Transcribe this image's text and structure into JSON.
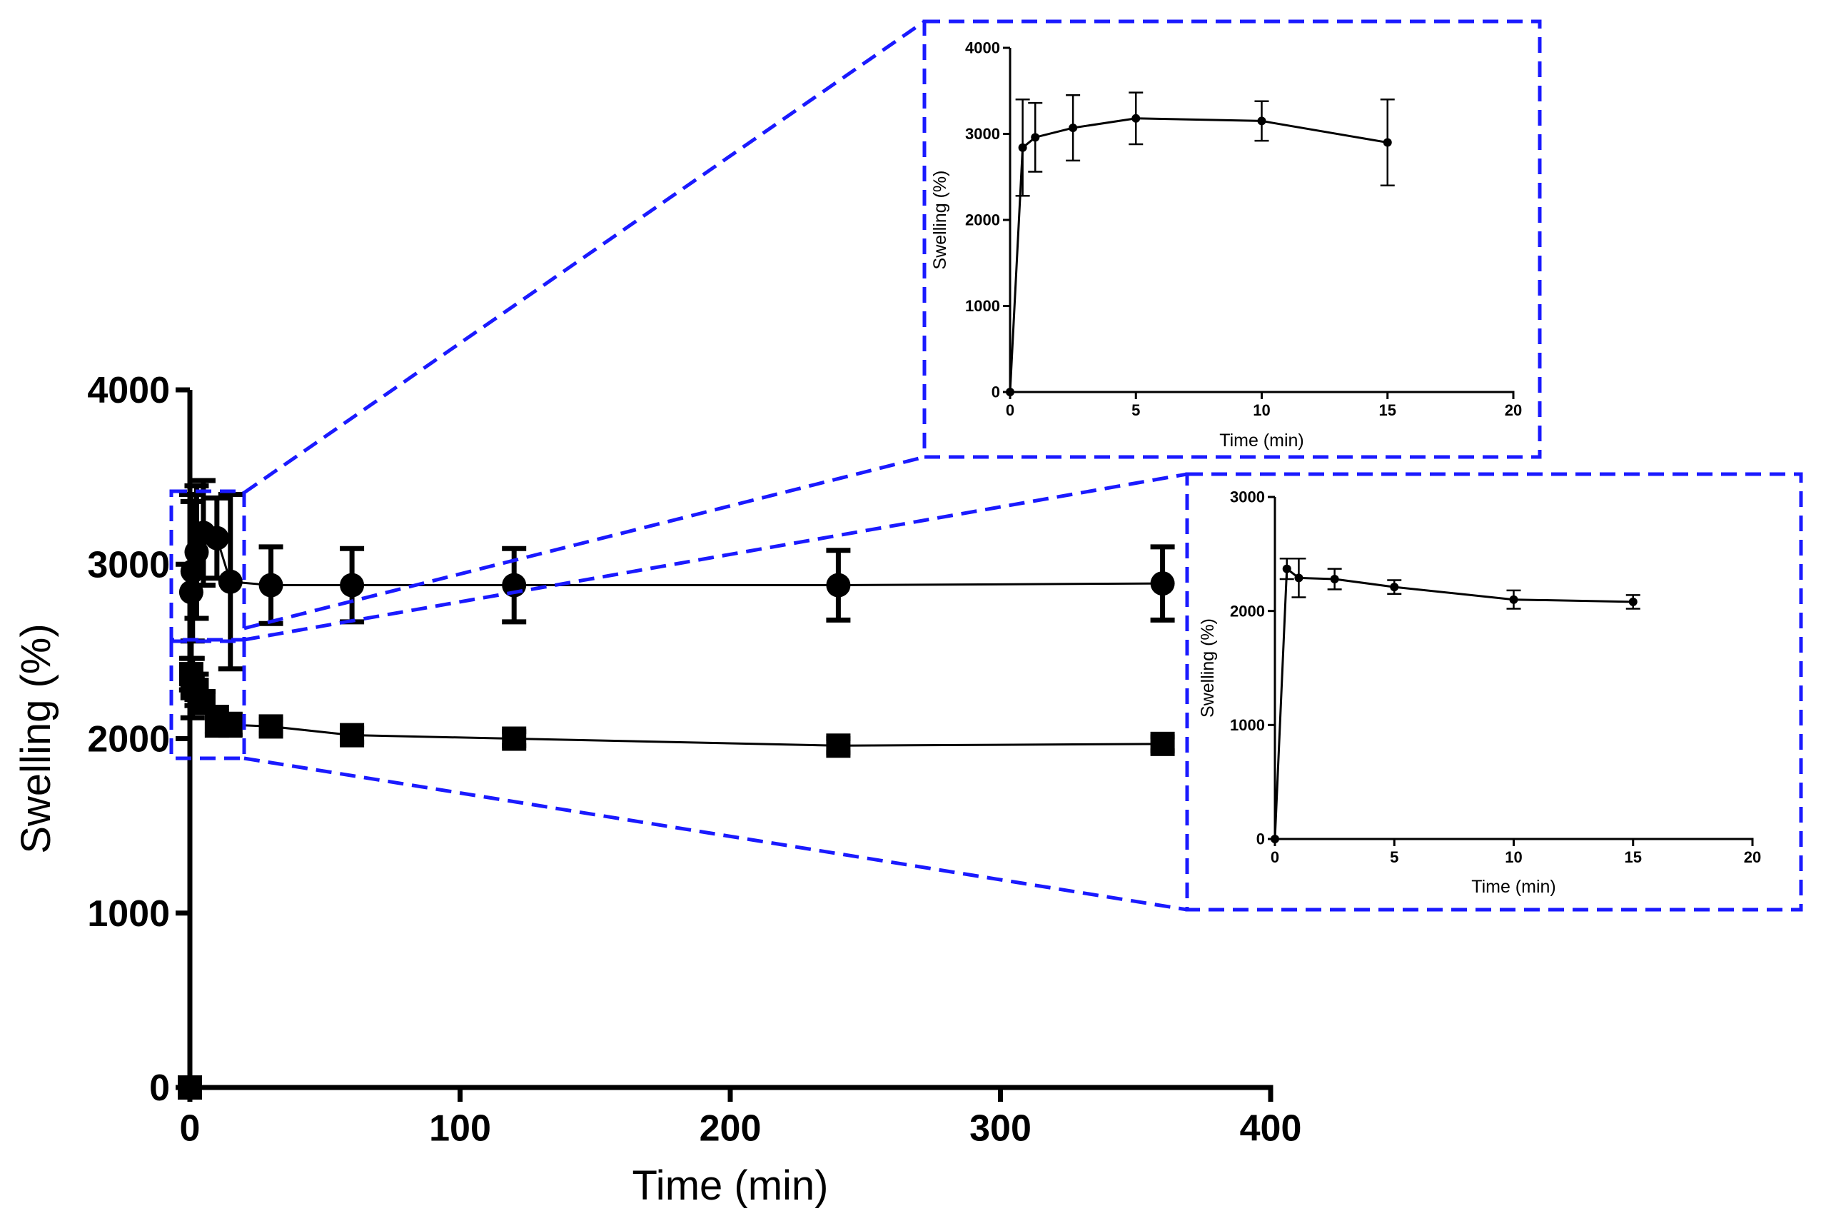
{
  "chart_data": [
    {
      "type": "scatter",
      "panel": "main",
      "title": "",
      "xlabel": "Time (min)",
      "ylabel": "Swelling (%)",
      "xlim": [
        0,
        400
      ],
      "ylim": [
        0,
        4000
      ],
      "xticks": [
        0,
        100,
        200,
        300,
        400
      ],
      "yticks": [
        0,
        1000,
        2000,
        3000,
        4000
      ],
      "xtick_labels": [
        "0",
        "100",
        "200",
        "300",
        "400"
      ],
      "ytick_labels": [
        "0",
        "1000",
        "2000",
        "3000",
        "4000"
      ],
      "grid": false,
      "series": [
        {
          "marker": "circle",
          "x": [
            0,
            0.5,
            1,
            2.5,
            5,
            10,
            15,
            30,
            60,
            120,
            240,
            360
          ],
          "y": [
            0,
            2840,
            2960,
            3070,
            3180,
            3150,
            2900,
            2880,
            2880,
            2880,
            2880,
            2890
          ],
          "error": [
            0,
            560,
            400,
            380,
            300,
            230,
            500,
            220,
            210,
            210,
            200,
            210
          ]
        },
        {
          "marker": "square",
          "x": [
            0,
            0.5,
            1,
            2.5,
            5,
            10,
            15,
            30,
            60,
            120,
            240,
            360
          ],
          "y": [
            0,
            2370,
            2290,
            2280,
            2210,
            2100,
            2080,
            2070,
            2020,
            2000,
            1960,
            1970
          ],
          "error": [
            0,
            90,
            170,
            90,
            60,
            80,
            60,
            40,
            40,
            40,
            40,
            40
          ]
        }
      ]
    },
    {
      "type": "line",
      "panel": "inset-top",
      "xlabel": "Time (min)",
      "ylabel": "Swelling (%)",
      "xlim": [
        0,
        20
      ],
      "ylim": [
        0,
        4000
      ],
      "xticks": [
        0,
        5,
        10,
        15,
        20
      ],
      "yticks": [
        0,
        1000,
        2000,
        3000,
        4000
      ],
      "xtick_labels": [
        "0",
        "5",
        "10",
        "15",
        "20"
      ],
      "ytick_labels": [
        "0",
        "1000",
        "2000",
        "3000",
        "4000"
      ],
      "series": [
        {
          "marker": "circle",
          "x": [
            0,
            0.5,
            1,
            2.5,
            5,
            10,
            15
          ],
          "y": [
            0,
            2840,
            2960,
            3070,
            3180,
            3150,
            2900
          ],
          "error": [
            0,
            560,
            400,
            380,
            300,
            230,
            500
          ]
        }
      ]
    },
    {
      "type": "line",
      "panel": "inset-bottom",
      "xlabel": "Time (min)",
      "ylabel": "Swelling (%)",
      "xlim": [
        0,
        20
      ],
      "ylim": [
        0,
        3000
      ],
      "xticks": [
        0,
        5,
        10,
        15,
        20
      ],
      "yticks": [
        0,
        1000,
        2000,
        3000
      ],
      "xtick_labels": [
        "0",
        "5",
        "10",
        "15",
        "20"
      ],
      "ytick_labels": [
        "0",
        "1000",
        "2000",
        "3000"
      ],
      "series": [
        {
          "marker": "circle",
          "x": [
            0,
            0.5,
            1,
            2.5,
            5,
            10,
            15
          ],
          "y": [
            0,
            2370,
            2290,
            2280,
            2210,
            2100,
            2080
          ],
          "error": [
            0,
            90,
            170,
            90,
            60,
            80,
            60
          ]
        }
      ]
    }
  ],
  "colors": {
    "zoom_box": "#1a1aff",
    "data": "#000000"
  }
}
